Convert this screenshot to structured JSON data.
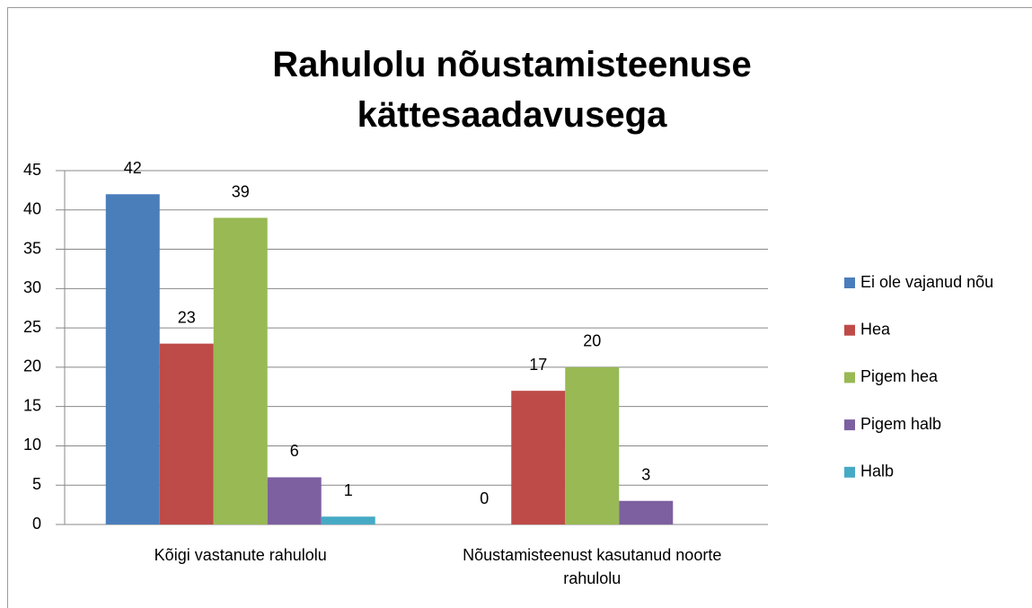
{
  "chart_data": {
    "type": "bar",
    "title": "Rahulolu nõustamisteenuse kättesaadavusega",
    "categories": [
      "Kõigi vastanute rahulolu",
      "Nõustamisteenust kasutanud noorte rahulolu"
    ],
    "series": [
      {
        "name": "Ei ole vajanud nõu",
        "color": "#4a7ebb",
        "values": [
          42,
          0
        ]
      },
      {
        "name": "Hea",
        "color": "#be4b48",
        "values": [
          23,
          17
        ]
      },
      {
        "name": "Pigem hea",
        "color": "#98b954",
        "values": [
          39,
          20
        ]
      },
      {
        "name": "Pigem halb",
        "color": "#7d60a0",
        "values": [
          6,
          3
        ]
      },
      {
        "name": "Halb",
        "color": "#46aac5",
        "values": [
          1,
          null
        ]
      }
    ],
    "ylim": [
      0,
      45
    ],
    "yticks": [
      0,
      5,
      10,
      15,
      20,
      25,
      30,
      35,
      40,
      45
    ],
    "grid": true,
    "legend": "right"
  }
}
